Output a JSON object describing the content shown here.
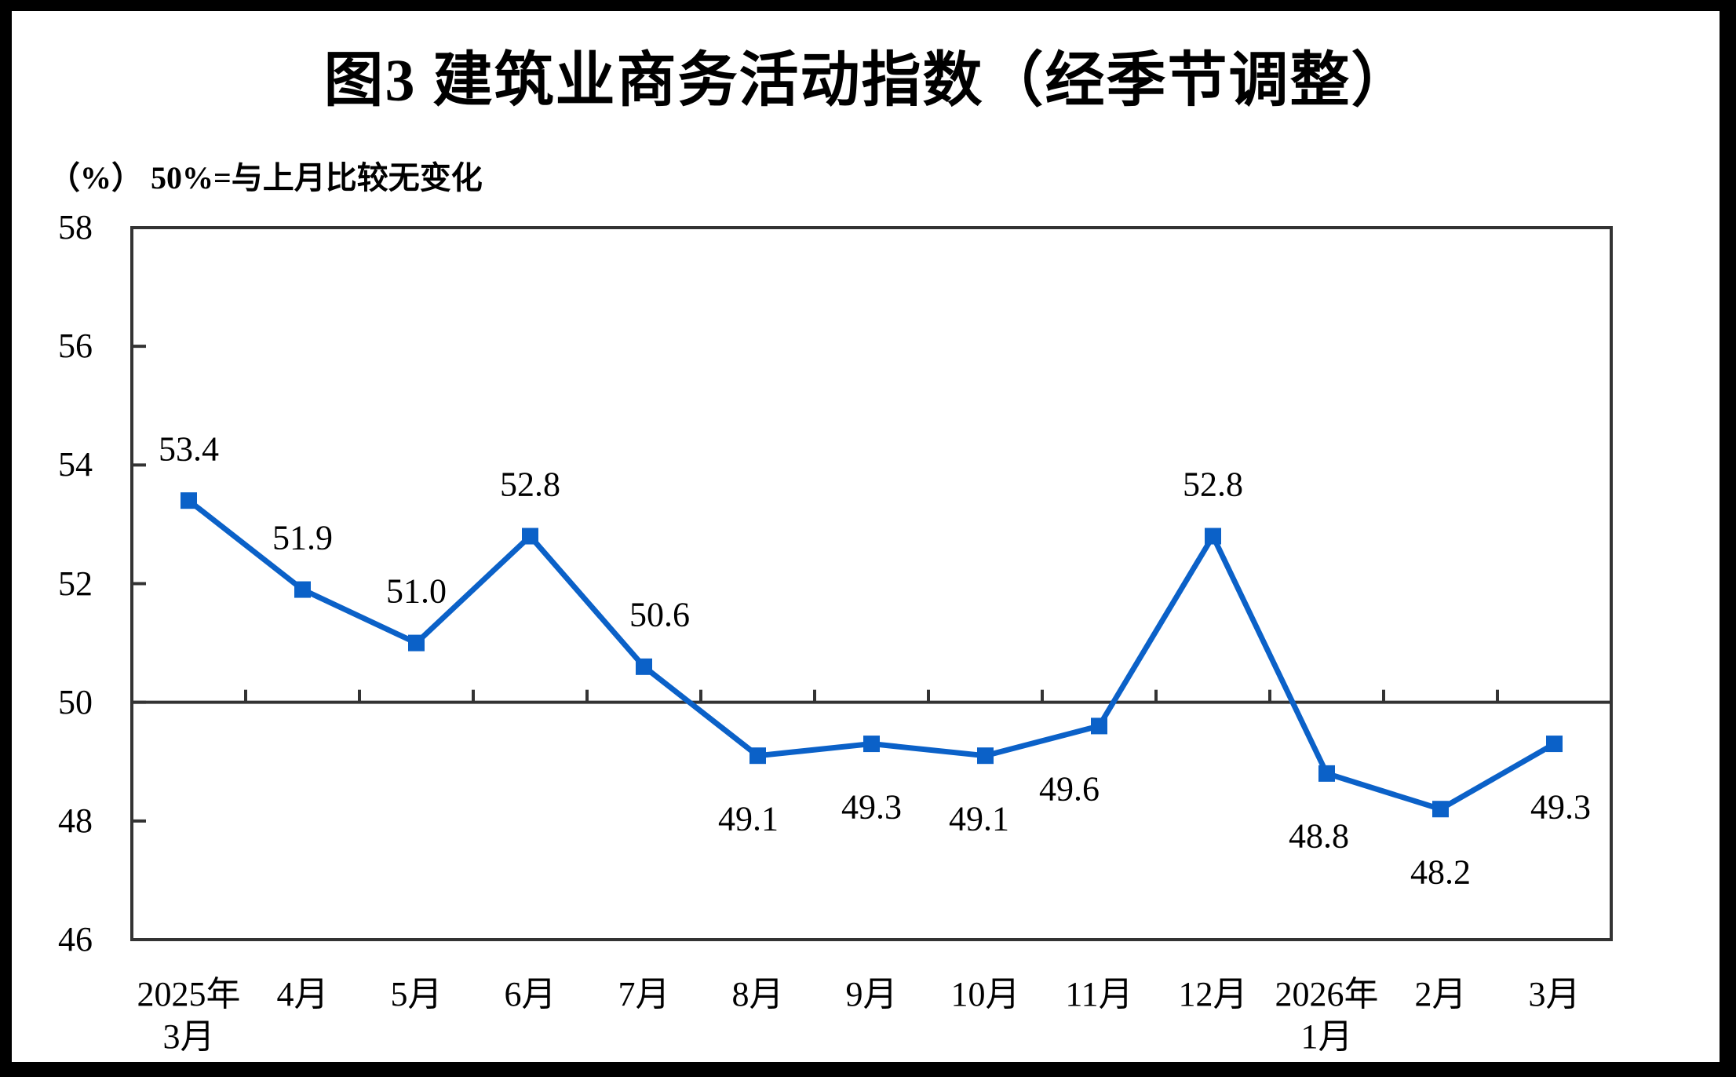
{
  "chart_data": {
    "type": "line",
    "title": "图3  建筑业商务活动指数（经季节调整）",
    "unit_note": "（%） 50%=与上月比较无变化",
    "categories": [
      [
        "2025年",
        "3月"
      ],
      [
        "4月"
      ],
      [
        "5月"
      ],
      [
        "6月"
      ],
      [
        "7月"
      ],
      [
        "8月"
      ],
      [
        "9月"
      ],
      [
        "10月"
      ],
      [
        "11月"
      ],
      [
        "12月"
      ],
      [
        "2026年",
        "1月"
      ],
      [
        "2月"
      ],
      [
        "3月"
      ]
    ],
    "values": [
      53.4,
      51.9,
      51.0,
      52.8,
      50.6,
      49.1,
      49.3,
      49.1,
      49.6,
      52.8,
      48.8,
      48.2,
      49.3
    ],
    "data_labels": [
      "53.4",
      "51.9",
      "51.0",
      "52.8",
      "50.6",
      "49.1",
      "49.3",
      "49.1",
      "49.6",
      "52.8",
      "48.8",
      "48.2",
      "49.3"
    ],
    "label_positions": [
      "above",
      "above",
      "above",
      "above",
      "above",
      "below",
      "below",
      "below",
      "below",
      "above",
      "below",
      "below",
      "below"
    ],
    "label_dx": [
      0,
      0,
      0,
      0,
      20,
      -12,
      0,
      -8,
      -38,
      0,
      -10,
      0,
      8
    ],
    "ylim": [
      46,
      58
    ],
    "yticks": [
      46,
      48,
      50,
      52,
      54,
      56,
      58
    ],
    "reference_line": 50,
    "grid": false,
    "legend": "none",
    "marker": "square",
    "line_color": "#0b61c8",
    "axis_color": "#333333",
    "text_color": "#000000"
  }
}
